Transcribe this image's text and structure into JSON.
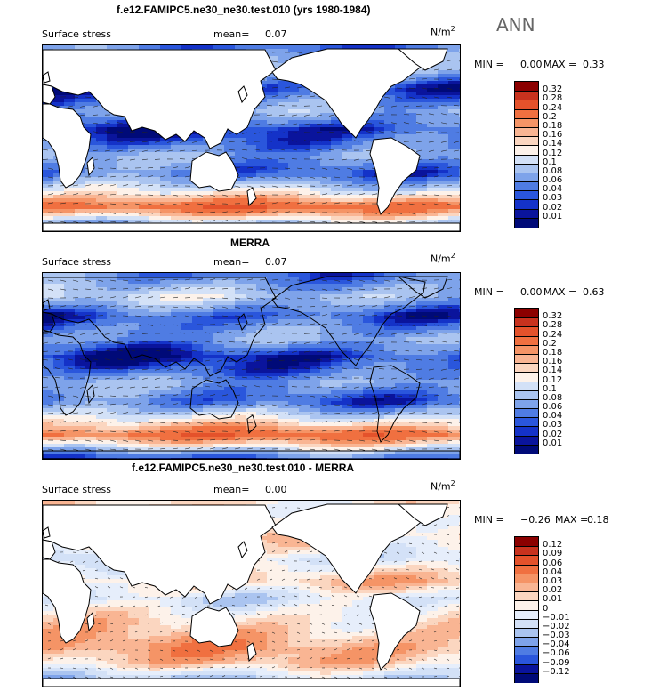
{
  "season": "ANN",
  "panels": [
    {
      "title": "f.e12.FAMIPC5.ne30_ne30.test.010 (yrs 1980-1984)",
      "variable": "Surface stress",
      "mean_label": "mean=",
      "mean_value": "0.07",
      "units": "N/m",
      "units_exp": "2",
      "min_label": "MIN =",
      "min_value": "0.00",
      "max_label": "MAX =",
      "max_value": "0.33",
      "field": "model",
      "colorbar": [
        "0.32",
        "0.28",
        "0.24",
        "0.2",
        "0.18",
        "0.16",
        "0.14",
        "0.12",
        "0.1",
        "0.08",
        "0.06",
        "0.04",
        "0.03",
        "0.02",
        "0.01"
      ],
      "colors": [
        "#8b0000",
        "#c8321e",
        "#e4522b",
        "#f07040",
        "#f59466",
        "#f9b593",
        "#fbd6c0",
        "#fdf2ea",
        "#d3e1f7",
        "#aac4f0",
        "#7ea3ea",
        "#4f7ce3",
        "#2a56dc",
        "#1432c8",
        "#0a149c",
        "#000a78"
      ]
    },
    {
      "title": "MERRA",
      "variable": "Surface stress",
      "mean_label": "mean=",
      "mean_value": "0.07",
      "units": "N/m",
      "units_exp": "2",
      "min_label": "MIN =",
      "min_value": "0.00",
      "max_label": "MAX =",
      "max_value": "0.63",
      "field": "obs",
      "colorbar": [
        "0.32",
        "0.28",
        "0.24",
        "0.2",
        "0.18",
        "0.16",
        "0.14",
        "0.12",
        "0.1",
        "0.08",
        "0.06",
        "0.04",
        "0.03",
        "0.02",
        "0.01"
      ],
      "colors": [
        "#8b0000",
        "#c8321e",
        "#e4522b",
        "#f07040",
        "#f59466",
        "#f9b593",
        "#fbd6c0",
        "#fdf2ea",
        "#d3e1f7",
        "#aac4f0",
        "#7ea3ea",
        "#4f7ce3",
        "#2a56dc",
        "#1432c8",
        "#0a149c",
        "#000a78"
      ]
    },
    {
      "title": "f.e12.FAMIPC5.ne30_ne30.test.010 - MERRA",
      "variable": "Surface stress",
      "mean_label": "mean=",
      "mean_value": "0.00",
      "units": "N/m",
      "units_exp": "2",
      "min_label": "MIN =",
      "min_value": "−0.26",
      "max_label": "MAX =",
      "max_value": "0.18",
      "field": "diff",
      "colorbar": [
        "0.12",
        "0.09",
        "0.06",
        "0.04",
        "0.03",
        "0.02",
        "0.01",
        "0",
        "−0.01",
        "−0.02",
        "−0.03",
        "−0.04",
        "−0.06",
        "−0.09",
        "−0.12"
      ],
      "colors": [
        "#8b0000",
        "#c8321e",
        "#e4522b",
        "#f07040",
        "#f59466",
        "#f9b593",
        "#fbd6c0",
        "#fdf2ea",
        "#e6eefb",
        "#d3e1f7",
        "#aac4f0",
        "#7ea3ea",
        "#4f7ce3",
        "#2a56dc",
        "#0a149c",
        "#000a78"
      ]
    }
  ]
}
